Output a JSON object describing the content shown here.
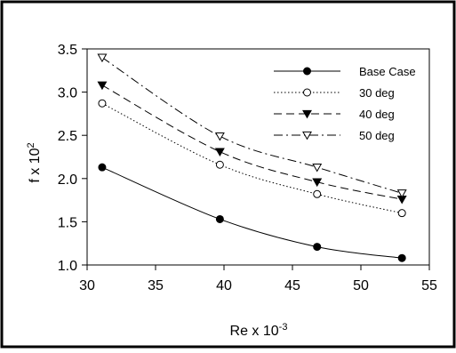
{
  "chart_data": {
    "type": "line",
    "title": "",
    "xlabel": {
      "base": "Re x 10",
      "exponent": "-3"
    },
    "ylabel": {
      "base": "f x 10",
      "exponent": "2"
    },
    "xlim": [
      30,
      55
    ],
    "ylim": [
      1.0,
      3.5
    ],
    "xticks": [
      30,
      35,
      40,
      45,
      50,
      55
    ],
    "yticks": [
      1.0,
      1.5,
      2.0,
      2.5,
      3.0,
      3.5
    ],
    "xtick_labels": [
      "30",
      "35",
      "40",
      "45",
      "50",
      "55"
    ],
    "ytick_labels": [
      "1.0",
      "1.5",
      "2.0",
      "2.5",
      "3.0",
      "3.5"
    ],
    "grid": false,
    "legend_position": "top-right",
    "series": [
      {
        "name": "Base Case",
        "line_style": "solid",
        "marker": "filled-circle",
        "x": [
          31.1,
          39.7,
          46.8,
          53.0
        ],
        "y": [
          2.13,
          1.53,
          1.21,
          1.08
        ]
      },
      {
        "name": "30 deg",
        "line_style": "dotted",
        "marker": "open-circle",
        "x": [
          31.1,
          39.7,
          46.8,
          53.0
        ],
        "y": [
          2.87,
          2.16,
          1.82,
          1.6
        ]
      },
      {
        "name": "40 deg",
        "line_style": "dashed",
        "marker": "filled-triangle-down",
        "x": [
          31.1,
          39.7,
          46.8,
          53.0
        ],
        "y": [
          3.08,
          2.31,
          1.96,
          1.76
        ]
      },
      {
        "name": "50 deg",
        "line_style": "dash-dot",
        "marker": "open-triangle-down",
        "x": [
          31.1,
          39.7,
          46.8,
          53.0
        ],
        "y": [
          3.4,
          2.49,
          2.13,
          1.83
        ]
      }
    ]
  }
}
